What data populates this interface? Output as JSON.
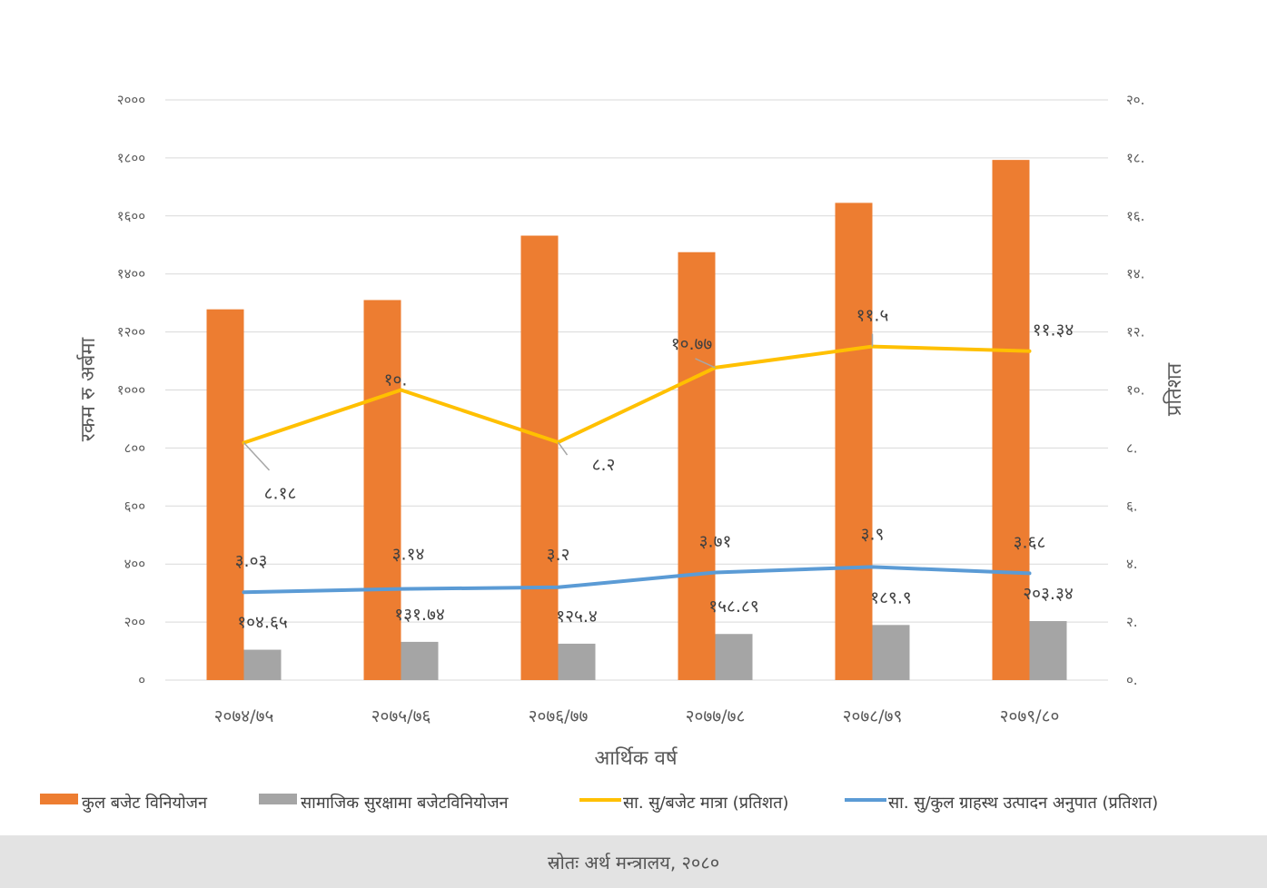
{
  "chart_data": {
    "type": "bar",
    "categories": [
      "२०७४/७५",
      "२०७५/७६",
      "२०७६/७७",
      "२०७७/७८",
      "२०७८/७९",
      "२०७९/८०"
    ],
    "xlabel": "आर्थिक वर्ष",
    "ylabel": "रकम रु अर्बमा",
    "y2label": "प्रतिशत",
    "ylim": [
      0,
      2000
    ],
    "y2lim": [
      0,
      20
    ],
    "y_ticks": [
      "०",
      "२००",
      "४००",
      "६००",
      "८००",
      "१०००",
      "१२००",
      "१४००",
      "१६००",
      "१८००",
      "२०००"
    ],
    "y2_ticks": [
      "०.",
      "२.",
      "४.",
      "६.",
      "८.",
      "१०.",
      "१२.",
      "१४.",
      "१६.",
      "१८.",
      "२०."
    ],
    "grid": true,
    "legend_position": "bottom",
    "series": [
      {
        "name": "कुल बजेट विनियोजन",
        "kind": "bar",
        "axis": "left",
        "color": "#ed7d31",
        "values": [
          1278,
          1310,
          1532,
          1475,
          1645,
          1793
        ],
        "labels": [
          "",
          "",
          "",
          "",
          "",
          ""
        ]
      },
      {
        "name": "सामाजिक सुरक्षामा बजेटविनियोजन",
        "kind": "bar",
        "axis": "left",
        "color": "#a5a5a5",
        "values": [
          104.65,
          131.74,
          125.4,
          158.89,
          189.9,
          203.34
        ],
        "labels": [
          "१०४.६५",
          "१३१.७४",
          "१२५.४",
          "१५८.८९",
          "१८९.९",
          "२०३.३४"
        ]
      },
      {
        "name": "सा. सु/बजेट मात्रा (प्रतिशत)",
        "kind": "line",
        "axis": "right",
        "color": "#ffc000",
        "values": [
          8.18,
          10.0,
          8.2,
          10.77,
          11.5,
          11.34
        ],
        "labels": [
          "८.१८",
          "१०.",
          "८.२",
          "१०.७७",
          "११.५",
          "११.३४"
        ]
      },
      {
        "name": "सा. सु/कुल ग्राहस्थ उत्पादन अनुपात (प्रतिशत)",
        "kind": "line",
        "axis": "right",
        "color": "#5b9bd5",
        "values": [
          3.03,
          3.14,
          3.2,
          3.71,
          3.9,
          3.68
        ],
        "labels": [
          "३.०३",
          "३.१४",
          "३.२",
          "३.७१",
          "३.९",
          "३.६८"
        ]
      }
    ]
  },
  "footer": {
    "source": "स्रोतः अर्थ मन्त्रालय, २०८०"
  }
}
